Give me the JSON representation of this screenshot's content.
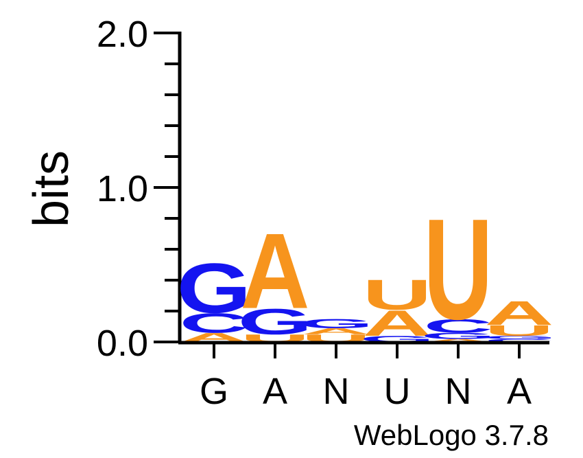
{
  "colors": {
    "A": "#f7941d",
    "U": "#f7941d",
    "C": "#1414f0",
    "G": "#1414f0"
  },
  "chart_data": {
    "type": "sequence-logo",
    "ylabel": "bits",
    "ylim": [
      0,
      2
    ],
    "yticks": [
      {
        "value": 0,
        "label": "0.0"
      },
      {
        "value": 1,
        "label": "1.0"
      },
      {
        "value": 2,
        "label": "2.0"
      }
    ],
    "yminor_step": 0.2,
    "positions": [
      {
        "label": "G",
        "stack": [
          {
            "letter": "A",
            "bits": 0.06
          },
          {
            "letter": "C",
            "bits": 0.13
          },
          {
            "letter": "G",
            "bits": 0.33
          }
        ]
      },
      {
        "label": "A",
        "stack": [
          {
            "letter": "U",
            "bits": 0.05
          },
          {
            "letter": "G",
            "bits": 0.17
          },
          {
            "letter": "A",
            "bits": 0.5
          }
        ]
      },
      {
        "label": "N",
        "stack": [
          {
            "letter": "U",
            "bits": 0.05
          },
          {
            "letter": "A",
            "bits": 0.04
          },
          {
            "letter": "G",
            "bits": 0.06
          }
        ]
      },
      {
        "label": "U",
        "stack": [
          {
            "letter": "G",
            "bits": 0.04
          },
          {
            "letter": "A",
            "bits": 0.17
          },
          {
            "letter": "U",
            "bits": 0.2
          }
        ]
      },
      {
        "label": "N",
        "stack": [
          {
            "letter": "A",
            "bits": 0.02
          },
          {
            "letter": "G",
            "bits": 0.04
          },
          {
            "letter": "C",
            "bits": 0.09
          },
          {
            "letter": "U",
            "bits": 0.67
          }
        ]
      },
      {
        "label": "A",
        "stack": [
          {
            "letter": "C",
            "bits": 0.02
          },
          {
            "letter": "G",
            "bits": 0.02
          },
          {
            "letter": "U",
            "bits": 0.07
          },
          {
            "letter": "A",
            "bits": 0.16
          }
        ]
      }
    ]
  },
  "credit": "WebLogo 3.7.8"
}
